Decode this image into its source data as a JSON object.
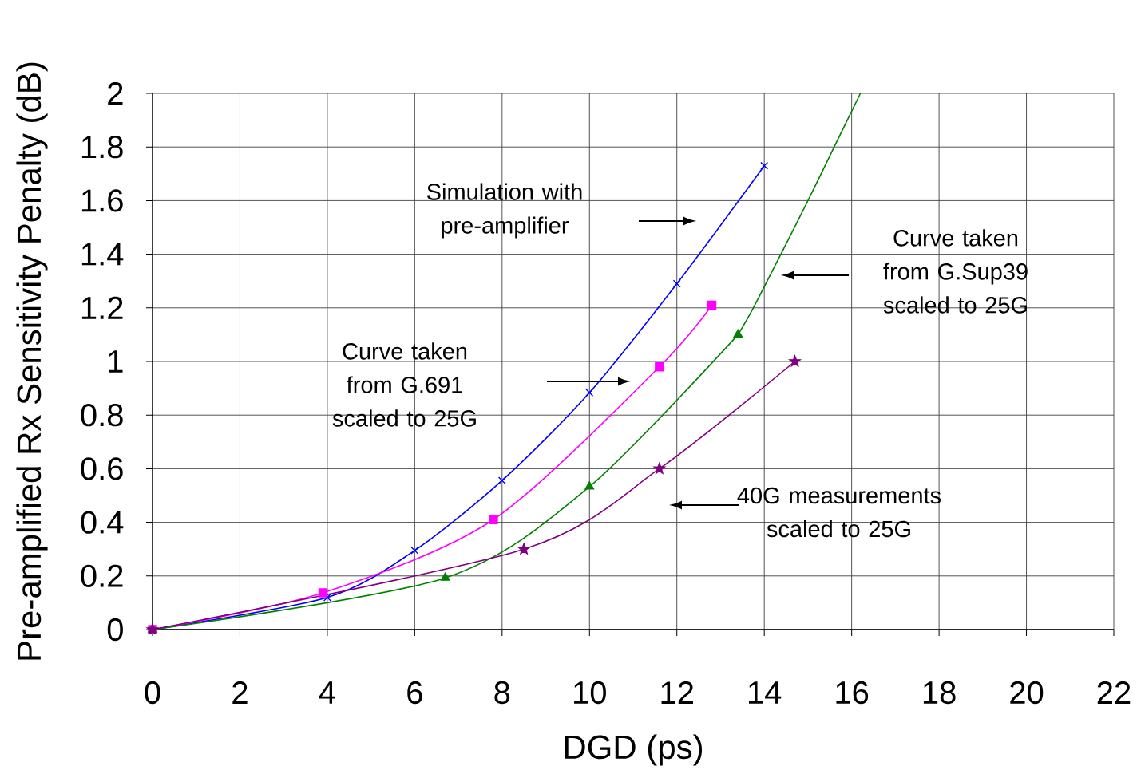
{
  "chart_data": {
    "type": "line",
    "xlabel": "DGD (ps)",
    "ylabel": "Pre-amplified Rx Sensitivity Penalty (dB)",
    "xlim": [
      0,
      22
    ],
    "ylim": [
      0,
      2
    ],
    "xticks": [
      0,
      2,
      4,
      6,
      8,
      10,
      12,
      14,
      16,
      18,
      20,
      22
    ],
    "yticks": [
      0,
      0.2,
      0.4,
      0.6,
      0.8,
      1,
      1.2,
      1.4,
      1.6,
      1.8,
      2
    ],
    "grid": true,
    "line_style": "solid",
    "series": [
      {
        "color": "#0000ff",
        "marker": "cross",
        "x": [
          0,
          4,
          6,
          8,
          10,
          12,
          14
        ],
        "values": [
          0,
          0.12,
          0.295,
          0.556,
          0.884,
          1.29,
          1.73
        ]
      },
      {
        "color": "#ff00ff",
        "marker": "square",
        "x": [
          0,
          3.9,
          7.8,
          11.6,
          12.8
        ],
        "values": [
          0,
          0.137,
          0.41,
          0.98,
          1.21
        ]
      },
      {
        "color": "#008000",
        "marker": "triangle",
        "x": [
          0,
          6.7,
          10,
          13.4
        ],
        "values": [
          0,
          0.193,
          0.533,
          1.1
        ]
      },
      {
        "color": "#008000",
        "marker": "none",
        "x": [
          13.4,
          13.75,
          14.38,
          15,
          15.6,
          16.2
        ],
        "values": [
          1.1,
          1.2,
          1.4,
          1.6,
          1.8,
          2
        ]
      },
      {
        "color": "#800080",
        "marker": "star",
        "x": [
          0,
          8.5,
          11.6,
          14.7
        ],
        "values": [
          0,
          0.3,
          0.6,
          1.0
        ]
      }
    ],
    "annotations": [
      "Simulation with pre-amplifier",
      "Curve taken from G.Sup39 scaled to 25G",
      "Curve taken from G.691 scaled to 25G",
      "40G measurements scaled to 25G"
    ]
  }
}
